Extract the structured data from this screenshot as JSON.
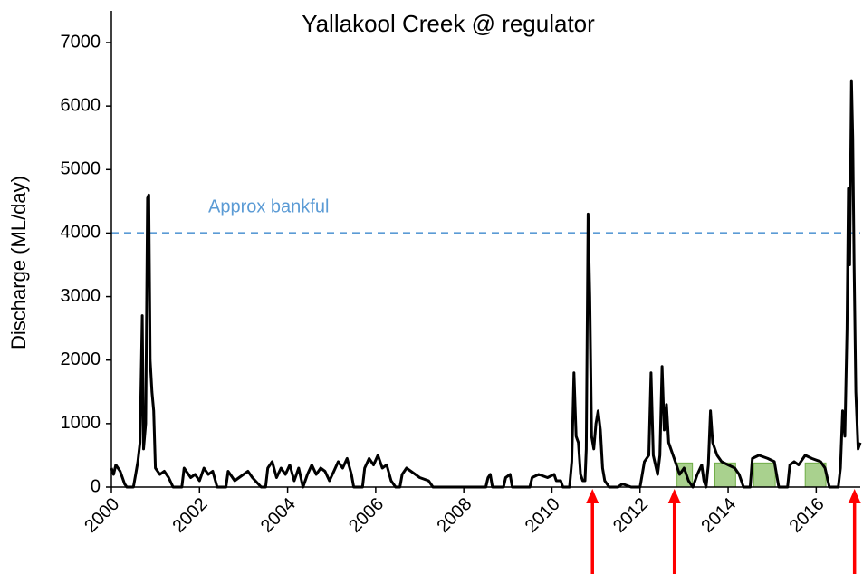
{
  "chart_data": {
    "type": "line",
    "title": "Yallakool Creek @ regulator",
    "ylabel": "Discharge (ML/day)",
    "color": "#000000",
    "x": [
      2000.0,
      2000.05,
      2000.1,
      2000.2,
      2000.3,
      2000.35,
      2000.5,
      2000.55,
      2000.6,
      2000.65,
      2000.7,
      2000.73,
      2000.78,
      2000.82,
      2000.85,
      2000.88,
      2000.92,
      2000.96,
      2001.0,
      2001.1,
      2001.2,
      2001.3,
      2001.4,
      2001.6,
      2001.65,
      2001.8,
      2001.9,
      2002.0,
      2002.1,
      2002.2,
      2002.3,
      2002.4,
      2002.6,
      2002.65,
      2002.8,
      2003.0,
      2003.1,
      2003.2,
      2003.4,
      2003.5,
      2003.55,
      2003.65,
      2003.75,
      2003.85,
      2003.95,
      2004.05,
      2004.15,
      2004.25,
      2004.35,
      2004.45,
      2004.55,
      2004.65,
      2004.75,
      2004.85,
      2004.95,
      2005.05,
      2005.15,
      2005.25,
      2005.35,
      2005.45,
      2005.5,
      2005.7,
      2005.75,
      2005.85,
      2005.95,
      2006.05,
      2006.15,
      2006.25,
      2006.35,
      2006.45,
      2006.55,
      2006.6,
      2006.7,
      2006.8,
      2006.9,
      2007.0,
      2007.2,
      2007.3,
      2008.0,
      2008.5,
      2008.55,
      2008.6,
      2008.65,
      2008.9,
      2008.95,
      2009.05,
      2009.1,
      2009.5,
      2009.55,
      2009.7,
      2009.9,
      2010.05,
      2010.1,
      2010.2,
      2010.25,
      2010.4,
      2010.45,
      2010.5,
      2010.55,
      2010.6,
      2010.65,
      2010.7,
      2010.75,
      2010.78,
      2010.82,
      2010.86,
      2010.9,
      2010.95,
      2011.0,
      2011.05,
      2011.1,
      2011.15,
      2011.2,
      2011.3,
      2011.5,
      2011.6,
      2011.8,
      2012.0,
      2012.05,
      2012.1,
      2012.2,
      2012.25,
      2012.3,
      2012.4,
      2012.45,
      2012.5,
      2012.55,
      2012.6,
      2012.65,
      2012.7,
      2012.8,
      2012.9,
      2013.0,
      2013.1,
      2013.2,
      2013.3,
      2013.4,
      2013.45,
      2013.5,
      2013.55,
      2013.6,
      2013.65,
      2013.75,
      2013.85,
      2014.0,
      2014.15,
      2014.25,
      2014.35,
      2014.5,
      2014.55,
      2014.7,
      2014.9,
      2015.05,
      2015.15,
      2015.35,
      2015.4,
      2015.5,
      2015.6,
      2015.75,
      2015.9,
      2016.1,
      2016.2,
      2016.3,
      2016.5,
      2016.55,
      2016.6,
      2016.65,
      2016.7,
      2016.73,
      2016.76,
      2016.8,
      2016.83,
      2016.86,
      2016.9,
      2016.95,
      2017.0
    ],
    "values": [
      300,
      200,
      350,
      250,
      50,
      0,
      0,
      200,
      400,
      700,
      2700,
      600,
      1000,
      4550,
      4600,
      2000,
      1500,
      1200,
      300,
      200,
      250,
      150,
      0,
      0,
      300,
      150,
      200,
      100,
      300,
      200,
      250,
      0,
      0,
      250,
      100,
      200,
      250,
      150,
      0,
      0,
      300,
      400,
      150,
      300,
      200,
      350,
      100,
      300,
      0,
      200,
      350,
      200,
      300,
      250,
      100,
      250,
      400,
      300,
      450,
      200,
      0,
      0,
      300,
      450,
      350,
      500,
      300,
      350,
      100,
      0,
      0,
      200,
      300,
      250,
      200,
      150,
      100,
      0,
      0,
      0,
      150,
      200,
      0,
      0,
      150,
      200,
      0,
      0,
      150,
      200,
      150,
      200,
      100,
      100,
      0,
      0,
      400,
      1800,
      800,
      700,
      200,
      100,
      100,
      600,
      4300,
      3000,
      800,
      600,
      1000,
      1200,
      900,
      300,
      100,
      0,
      0,
      50,
      0,
      0,
      200,
      400,
      500,
      1800,
      500,
      200,
      500,
      1900,
      900,
      1300,
      700,
      600,
      400,
      200,
      300,
      100,
      0,
      200,
      350,
      100,
      0,
      350,
      1200,
      700,
      500,
      400,
      350,
      300,
      200,
      0,
      0,
      450,
      500,
      450,
      400,
      0,
      0,
      350,
      400,
      350,
      500,
      450,
      400,
      300,
      0,
      0,
      300,
      1200,
      800,
      2500,
      4700,
      3500,
      6400,
      5500,
      3500,
      1500,
      600,
      700
    ],
    "xlim": [
      2000,
      2017
    ],
    "xticks": [
      2000,
      2002,
      2004,
      2006,
      2008,
      2010,
      2012,
      2014,
      2016
    ],
    "ylim": [
      0,
      7000
    ],
    "yticks": [
      0,
      1000,
      2000,
      3000,
      4000,
      5000,
      6000,
      7000
    ],
    "grid": false,
    "reference_lines": [
      {
        "value": 4000,
        "label": "Approx bankful",
        "color": "#5b9bd5"
      }
    ],
    "arrows": {
      "color": "#ff0000",
      "x": [
        2010.92,
        2012.78,
        2016.87
      ]
    },
    "shaded": {
      "color": "#a9d18e",
      "edge": "#70ad47",
      "ranges": [
        {
          "x": [
            2012.84,
            2013.19
          ],
          "top": 380
        },
        {
          "x": [
            2013.7,
            2014.17
          ],
          "top": 380
        },
        {
          "x": [
            2014.58,
            2015.07
          ],
          "top": 380
        },
        {
          "x": [
            2015.75,
            2016.22
          ],
          "top": 380
        }
      ]
    }
  }
}
